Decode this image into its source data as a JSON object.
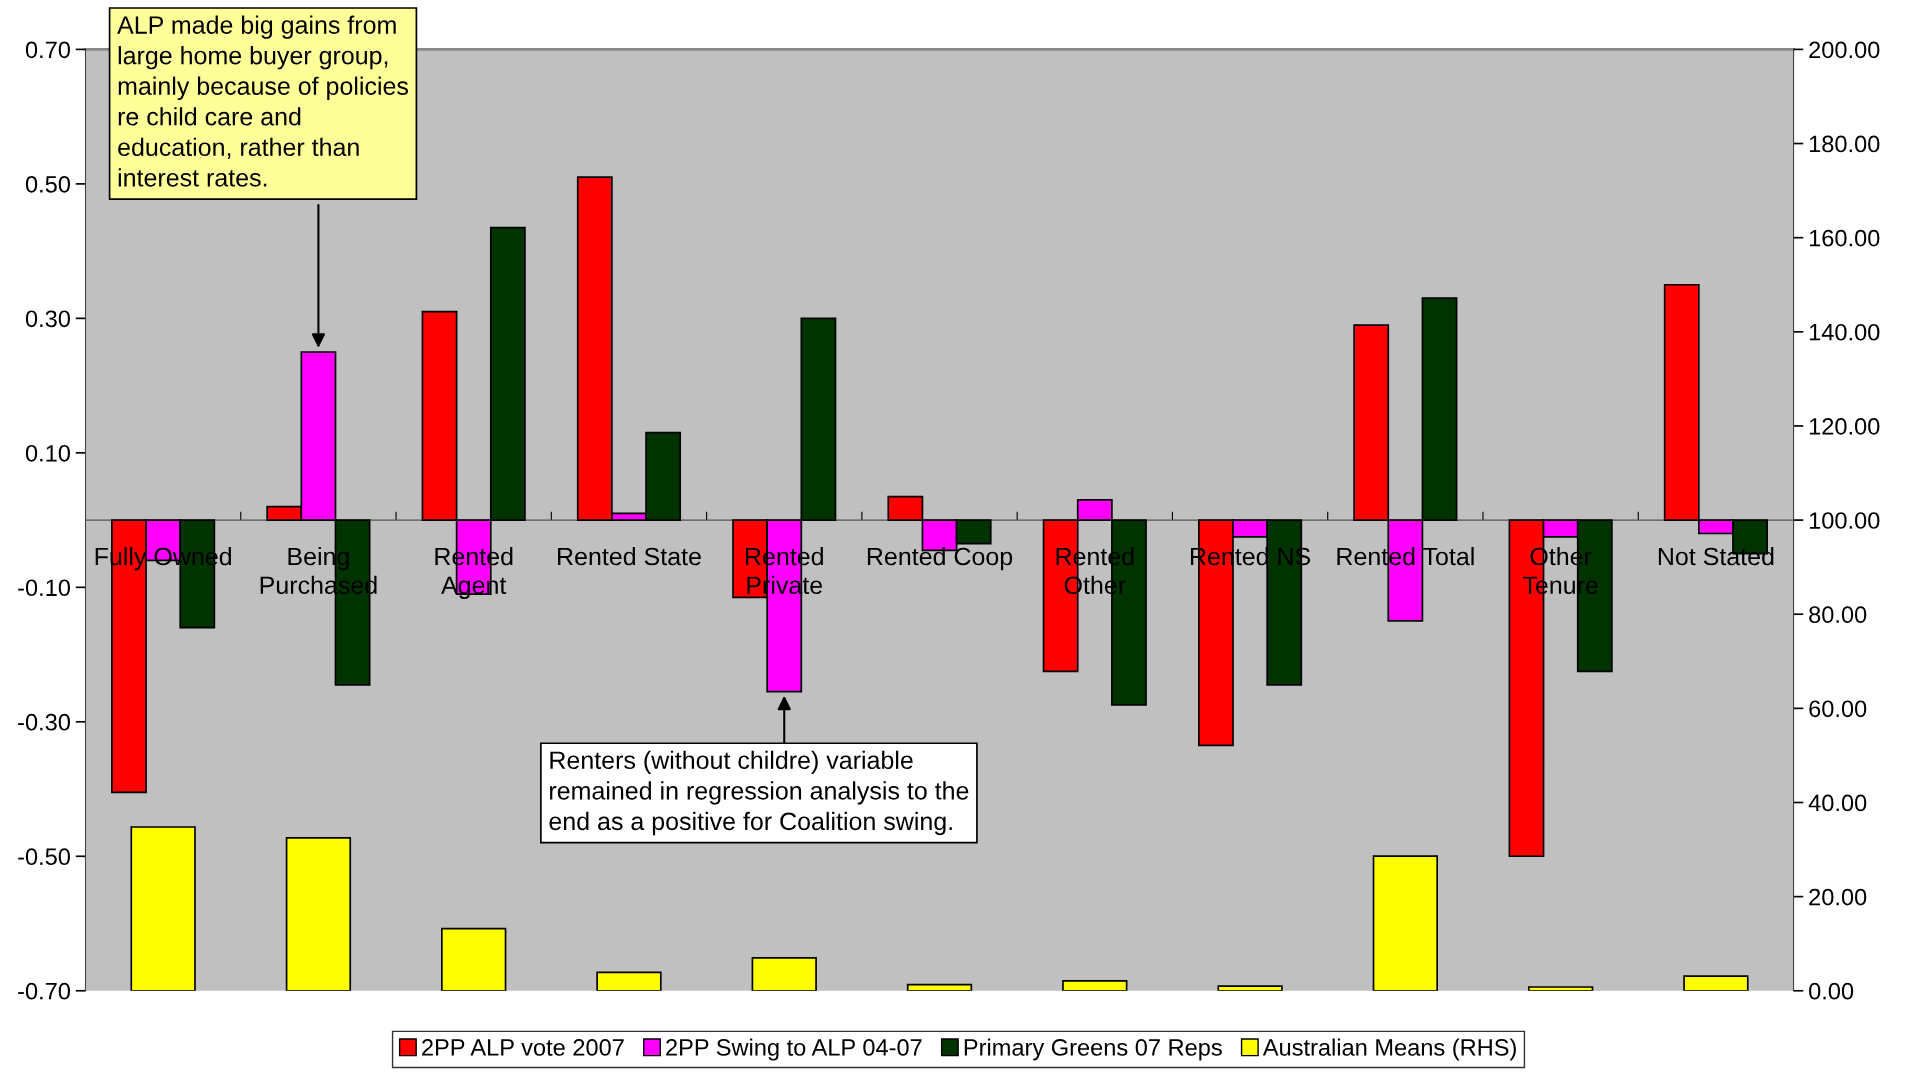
{
  "chart_data": {
    "type": "bar",
    "categories": [
      "Fully Owned",
      "Being\nPurchased",
      "Rented\nAgent",
      "Rented State",
      "Rented\nPrivate",
      "Rented Coop",
      "Rented\nOther",
      "Rented NS",
      "Rented Total",
      "Other\nTenure",
      "Not Stated"
    ],
    "series": [
      {
        "name": "2PP ALP vote 2007",
        "color": "#ff0000",
        "values": [
          -0.405,
          0.02,
          0.31,
          0.51,
          -0.115,
          0.035,
          -0.225,
          -0.335,
          0.29,
          -0.5,
          0.35
        ]
      },
      {
        "name": "2PP Swing to ALP 04-07",
        "color": "#ff00ff",
        "values": [
          -0.06,
          0.25,
          -0.11,
          0.01,
          -0.255,
          -0.045,
          0.03,
          -0.025,
          -0.15,
          -0.025,
          -0.02
        ]
      },
      {
        "name": "Primary Greens 07 Reps",
        "color": "#003300",
        "values": [
          -0.16,
          -0.245,
          0.435,
          0.13,
          0.3,
          -0.035,
          -0.275,
          -0.245,
          0.33,
          -0.225,
          -0.05
        ]
      },
      {
        "name": "Australian Means (RHS)",
        "color": "#ffff00",
        "axis": "y2",
        "values": [
          34.8,
          32.5,
          13.2,
          3.9,
          7.0,
          1.3,
          2.1,
          1.0,
          28.6,
          0.8,
          3.1
        ]
      }
    ],
    "ylim": [
      -0.7,
      0.7
    ],
    "yticks": [
      {
        "value": -0.7,
        "label": "-0.70"
      },
      {
        "value": -0.5,
        "label": "-0.50"
      },
      {
        "value": -0.3,
        "label": "-0.30"
      },
      {
        "value": -0.1,
        "label": "-0.10"
      },
      {
        "value": 0.1,
        "label": "0.10"
      },
      {
        "value": 0.3,
        "label": "0.30"
      },
      {
        "value": 0.5,
        "label": "0.50"
      },
      {
        "value": 0.7,
        "label": "0.70"
      }
    ],
    "y2lim": [
      0,
      200
    ],
    "y2ticks": [
      {
        "value": 0,
        "label": "0.00"
      },
      {
        "value": 20,
        "label": "20.00"
      },
      {
        "value": 40,
        "label": "40.00"
      },
      {
        "value": 60,
        "label": "60.00"
      },
      {
        "value": 80,
        "label": "80.00"
      },
      {
        "value": 100,
        "label": "100.00"
      },
      {
        "value": 120,
        "label": "120.00"
      },
      {
        "value": 140,
        "label": "140.00"
      },
      {
        "value": 160,
        "label": "160.00"
      },
      {
        "value": 180,
        "label": "180.00"
      },
      {
        "value": 200,
        "label": "200.00"
      }
    ],
    "annotations": [
      {
        "text": "ALP made big gains from\nlarge home buyer group,\nmainly because of policies\nre child care and\neducation, rather than\ninterest rates.",
        "x": "Being\nPurchased",
        "y": 0.25
      },
      {
        "text": "Renters (without childre) variable\nremained in regression analysis to the\nend as a positive for Coalition swing.",
        "x": "Rented\nPrivate",
        "y": -0.255
      }
    ],
    "grid": false,
    "legend": "bottom"
  }
}
